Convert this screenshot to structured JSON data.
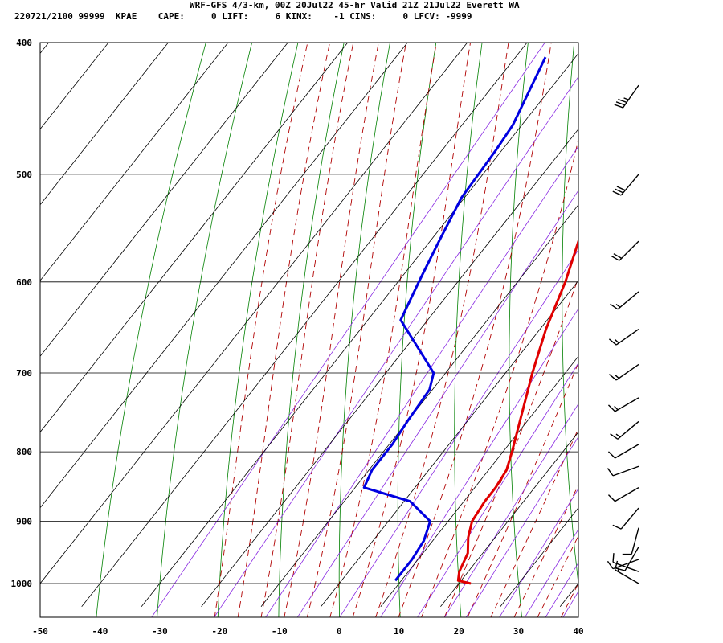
{
  "header": {
    "title": "WRF-GFS 4/3-km, 00Z 20Jul22 45-hr Valid 21Z 21Jul22 Everett WA",
    "info": "220721/2100 99999  KPAE    CAPE:     0 LIFT:     6 KINX:    -1 CINS:     0 LFCV: -9999"
  },
  "colors": {
    "temperature": "#e00000",
    "dewpoint": "#0000e0",
    "isotherm_grid": "#000000",
    "dry_adiabat": "#008000",
    "moist_adiabat": "#b00000",
    "mixing_ratio": "#8a2be2",
    "wind_barb": "#000000"
  },
  "chart_data": {
    "type": "line",
    "title": "",
    "xlabel": "",
    "ylabel": "",
    "x_ticks": [
      -50,
      -40,
      -30,
      -20,
      -10,
      0,
      10,
      20,
      30,
      40
    ],
    "pressure_ticks": [
      400,
      500,
      600,
      700,
      800,
      900,
      1000
    ],
    "x_range": [
      -50,
      40
    ],
    "pressure_range": [
      1040,
      400
    ],
    "grid": true,
    "series": [
      {
        "key": "temperature",
        "points": [
          {
            "p": 1000,
            "x": 22.0
          },
          {
            "p": 995,
            "x": 19.5
          },
          {
            "p": 980,
            "x": 18.5
          },
          {
            "p": 950,
            "x": 17.5
          },
          {
            "p": 925,
            "x": 15.5
          },
          {
            "p": 900,
            "x": 14.0
          },
          {
            "p": 870,
            "x": 13.5
          },
          {
            "p": 850,
            "x": 13.5
          },
          {
            "p": 825,
            "x": 13.0
          },
          {
            "p": 800,
            "x": 11.5
          },
          {
            "p": 770,
            "x": 9.5
          },
          {
            "p": 700,
            "x": 4.5
          },
          {
            "p": 650,
            "x": 1.0
          },
          {
            "p": 600,
            "x": -2.0
          },
          {
            "p": 550,
            "x": -6.0
          },
          {
            "p": 500,
            "x": -10.0
          },
          {
            "p": 450,
            "x": -15.0
          },
          {
            "p": 410,
            "x": -22.5
          }
        ]
      },
      {
        "key": "dewpoint",
        "points": [
          {
            "p": 995,
            "x": 9.0
          },
          {
            "p": 960,
            "x": 9.0
          },
          {
            "p": 930,
            "x": 8.5
          },
          {
            "p": 900,
            "x": 7.0
          },
          {
            "p": 870,
            "x": 1.0
          },
          {
            "p": 850,
            "x": -8.5
          },
          {
            "p": 825,
            "x": -9.5
          },
          {
            "p": 790,
            "x": -9.5
          },
          {
            "p": 760,
            "x": -10.0
          },
          {
            "p": 720,
            "x": -10.5
          },
          {
            "p": 700,
            "x": -12.0
          },
          {
            "p": 640,
            "x": -24.5
          },
          {
            "p": 600,
            "x": -26.5
          },
          {
            "p": 560,
            "x": -28.5
          },
          {
            "p": 520,
            "x": -30.5
          },
          {
            "p": 480,
            "x": -31.0
          },
          {
            "p": 460,
            "x": -31.5
          },
          {
            "p": 410,
            "x": -35.0
          }
        ]
      }
    ],
    "wind_barbs": [
      {
        "p": 1000,
        "dir": 300,
        "speed": 15
      },
      {
        "p": 980,
        "dir": 290,
        "speed": 10
      },
      {
        "p": 960,
        "dir": 250,
        "speed": 10
      },
      {
        "p": 940,
        "dir": 210,
        "speed": 10
      },
      {
        "p": 910,
        "dir": 195,
        "speed": 10
      },
      {
        "p": 880,
        "dir": 220,
        "speed": 10
      },
      {
        "p": 850,
        "dir": 240,
        "speed": 10
      },
      {
        "p": 820,
        "dir": 250,
        "speed": 10
      },
      {
        "p": 790,
        "dir": 240,
        "speed": 10
      },
      {
        "p": 760,
        "dir": 230,
        "speed": 15
      },
      {
        "p": 730,
        "dir": 240,
        "speed": 15
      },
      {
        "p": 690,
        "dir": 235,
        "speed": 15
      },
      {
        "p": 650,
        "dir": 235,
        "speed": 15
      },
      {
        "p": 610,
        "dir": 230,
        "speed": 15
      },
      {
        "p": 560,
        "dir": 225,
        "speed": 20
      },
      {
        "p": 500,
        "dir": 220,
        "speed": 30
      },
      {
        "p": 430,
        "dir": 215,
        "speed": 35
      }
    ]
  }
}
